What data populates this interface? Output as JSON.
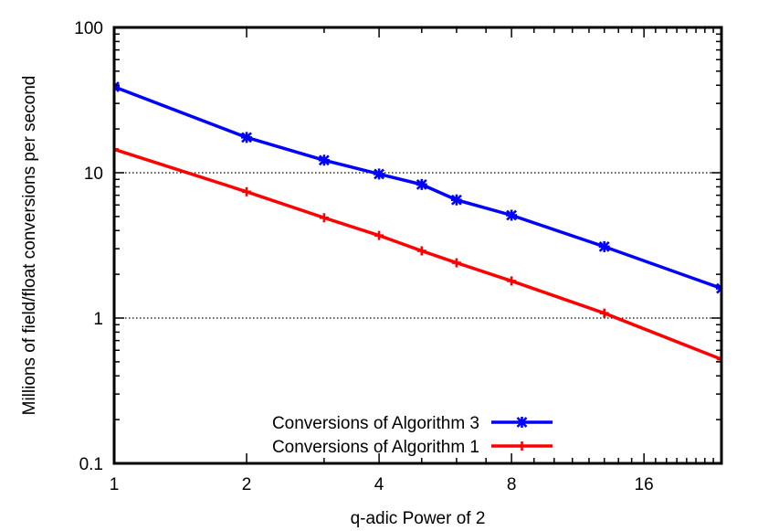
{
  "chart_data": {
    "type": "line",
    "title": "",
    "xlabel": "q-adic Power of 2",
    "ylabel": "Millions of field/float conversions per second",
    "x_scale": "log2",
    "y_scale": "log10",
    "xlim": [
      1,
      24
    ],
    "ylim": [
      0.1,
      100
    ],
    "x_ticks": [
      {
        "value": 1,
        "label": "1"
      },
      {
        "value": 2,
        "label": "2"
      },
      {
        "value": 4,
        "label": "4"
      },
      {
        "value": 8,
        "label": "8"
      },
      {
        "value": 16,
        "label": "16"
      }
    ],
    "y_ticks": [
      {
        "value": 0.1,
        "label": "0.1"
      },
      {
        "value": 1,
        "label": "1"
      },
      {
        "value": 10,
        "label": "10"
      },
      {
        "value": 100,
        "label": "100"
      }
    ],
    "grid": "horizontal dotted at major y ticks",
    "legend_position": "bottom-center",
    "series": [
      {
        "name": "Conversions of Algorithm 3",
        "color": "#0000ff",
        "marker": "star",
        "x": [
          1,
          2,
          3,
          4,
          5,
          6,
          8,
          13,
          24
        ],
        "y": [
          39,
          17.5,
          12.2,
          9.8,
          8.3,
          6.5,
          5.1,
          3.1,
          1.6
        ]
      },
      {
        "name": "Conversions of Algorithm 1",
        "color": "#ff0000",
        "marker": "plus",
        "x": [
          1,
          2,
          3,
          4,
          5,
          6,
          8,
          13,
          24
        ],
        "y": [
          14.5,
          7.4,
          4.9,
          3.7,
          2.9,
          2.4,
          1.8,
          1.08,
          0.52
        ]
      }
    ]
  }
}
